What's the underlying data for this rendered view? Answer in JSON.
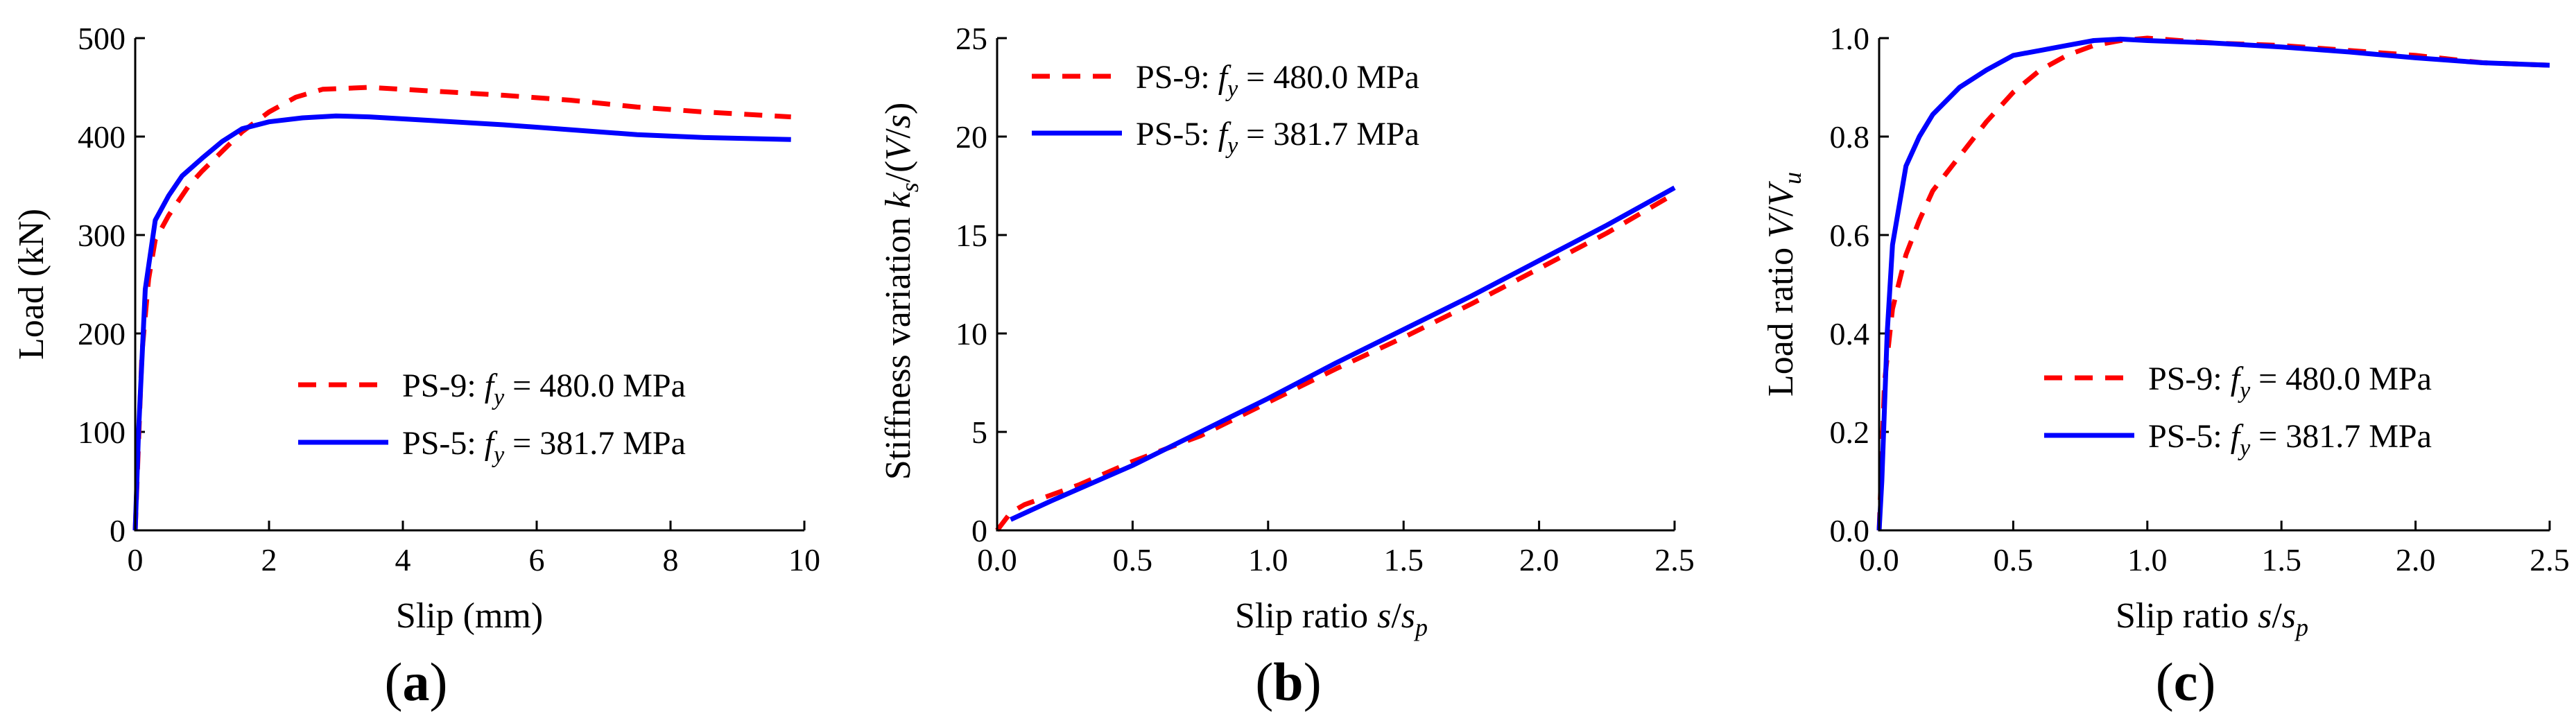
{
  "legend": {
    "ps9": {
      "name": "PS-9: ",
      "fy": "f",
      "sub": "y",
      "value": " = 480.0 MPa"
    },
    "ps5": {
      "name": "PS-5: ",
      "fy": "f",
      "sub": "y",
      "value": " = 381.7 MPa"
    }
  },
  "colors": {
    "ps9": "#ff0000",
    "ps5": "#0000ff"
  },
  "panels": {
    "a": {
      "open": "(",
      "letter": "a",
      "close": ")"
    },
    "b": {
      "open": "(",
      "letter": "b",
      "close": ")"
    },
    "c": {
      "open": "(",
      "letter": "c",
      "close": ")"
    }
  },
  "axes": {
    "a": {
      "xlabel": "Slip (mm)",
      "ylabel": "Load (kN)"
    },
    "b": {
      "xlabel_main": "Slip ratio ",
      "xlabel_s": "s",
      "xlabel_slash": "/",
      "xlabel_s2": "s",
      "xlabel_sub": "p",
      "ylabel_main": "Stiffness variation ",
      "ylabel_k": "k",
      "ylabel_sub": "s",
      "ylabel_open": "/(",
      "ylabel_V": "V",
      "ylabel_slash": "/",
      "ylabel_s": "s",
      "ylabel_close": ")"
    },
    "c": {
      "xlabel_main": "Slip ratio ",
      "xlabel_s": "s",
      "xlabel_slash": "/",
      "xlabel_s2": "s",
      "xlabel_sub": "p",
      "ylabel_main": "Load ratio ",
      "ylabel_V": "V",
      "ylabel_slash": "/",
      "ylabel_V2": "V",
      "ylabel_sub": "u"
    }
  },
  "chart_data": [
    {
      "id": "a",
      "type": "line",
      "title": "",
      "xlabel": "Slip (mm)",
      "ylabel": "Load (kN)",
      "xlim": [
        0,
        10
      ],
      "ylim": [
        0,
        500
      ],
      "xticks": [
        0,
        2,
        4,
        6,
        8,
        10
      ],
      "yticks": [
        0,
        100,
        200,
        300,
        400,
        500
      ],
      "xtick_labels": [
        "0",
        "2",
        "4",
        "6",
        "8",
        "10"
      ],
      "ytick_labels": [
        "0",
        "100",
        "200",
        "300",
        "400",
        "500"
      ],
      "legend_position": "lower-right",
      "series": [
        {
          "name": "PS-9: fy = 480.0 MPa",
          "color": "#ff0000",
          "dash": true,
          "x": [
            0,
            0.1,
            0.2,
            0.3,
            0.5,
            0.8,
            1.0,
            1.3,
            1.6,
            2.0,
            2.4,
            2.8,
            3.5,
            4.5,
            5.5,
            6.5,
            7.5,
            8.5,
            9.8
          ],
          "y": [
            0,
            180,
            255,
            295,
            320,
            350,
            365,
            385,
            405,
            425,
            440,
            448,
            450,
            446,
            442,
            437,
            430,
            425,
            420
          ]
        },
        {
          "name": "PS-5: fy = 381.7 MPa",
          "color": "#0000ff",
          "dash": false,
          "x": [
            0,
            0.05,
            0.15,
            0.3,
            0.5,
            0.7,
            1.0,
            1.3,
            1.6,
            2.0,
            2.5,
            3.0,
            3.5,
            4.5,
            5.5,
            6.5,
            7.5,
            8.5,
            9.8
          ],
          "y": [
            0,
            100,
            245,
            315,
            340,
            360,
            378,
            395,
            408,
            415,
            419,
            421,
            420,
            416,
            412,
            407,
            402,
            399,
            397
          ]
        }
      ]
    },
    {
      "id": "b",
      "type": "line",
      "title": "",
      "xlabel": "Slip ratio s/sp",
      "ylabel": "Stiffness variation ks/(V/s)",
      "xlim": [
        0,
        2.5
      ],
      "ylim": [
        0,
        25
      ],
      "xticks": [
        0,
        0.5,
        1.0,
        1.5,
        2.0,
        2.5
      ],
      "yticks": [
        0,
        5,
        10,
        15,
        20,
        25
      ],
      "xtick_labels": [
        "0.0",
        "0.5",
        "1.0",
        "1.5",
        "2.0",
        "2.5"
      ],
      "ytick_labels": [
        "0",
        "5",
        "10",
        "15",
        "20",
        "25"
      ],
      "legend_position": "top-left",
      "series": [
        {
          "name": "PS-9: fy = 480.0 MPa",
          "color": "#ff0000",
          "dash": true,
          "x": [
            0.0,
            0.05,
            0.1,
            0.3,
            0.5,
            0.75,
            1.0,
            1.25,
            1.5,
            1.75,
            2.0,
            2.25,
            2.5
          ],
          "y": [
            0.0,
            0.9,
            1.3,
            2.3,
            3.5,
            4.8,
            6.5,
            8.2,
            9.8,
            11.5,
            13.3,
            15.1,
            17.1
          ]
        },
        {
          "name": "PS-5: fy = 381.7 MPa",
          "color": "#0000ff",
          "dash": false,
          "x": [
            0.05,
            0.2,
            0.5,
            0.75,
            1.0,
            1.25,
            1.5,
            1.75,
            2.0,
            2.25,
            2.5
          ],
          "y": [
            0.55,
            1.5,
            3.3,
            5.0,
            6.7,
            8.5,
            10.2,
            11.9,
            13.7,
            15.5,
            17.4
          ]
        }
      ]
    },
    {
      "id": "c",
      "type": "line",
      "title": "",
      "xlabel": "Slip ratio s/sp",
      "ylabel": "Load ratio V/Vu",
      "xlim": [
        0,
        2.5
      ],
      "ylim": [
        0,
        1.0
      ],
      "xticks": [
        0,
        0.5,
        1.0,
        1.5,
        2.0,
        2.5
      ],
      "yticks": [
        0,
        0.2,
        0.4,
        0.6,
        0.8,
        1.0
      ],
      "xtick_labels": [
        "0.0",
        "0.5",
        "1.0",
        "1.5",
        "2.0",
        "2.5"
      ],
      "ytick_labels": [
        "0.0",
        "0.2",
        "0.4",
        "0.6",
        "0.8",
        "1.0"
      ],
      "legend_position": "lower-right",
      "series": [
        {
          "name": "PS-9: fy = 480.0 MPa",
          "color": "#ff0000",
          "dash": true,
          "x": [
            0,
            0.02,
            0.05,
            0.1,
            0.15,
            0.2,
            0.3,
            0.4,
            0.5,
            0.6,
            0.7,
            0.8,
            0.9,
            1.0,
            1.25,
            1.5,
            1.75,
            2.0,
            2.25,
            2.5
          ],
          "y": [
            0,
            0.3,
            0.45,
            0.56,
            0.63,
            0.69,
            0.76,
            0.83,
            0.89,
            0.935,
            0.965,
            0.985,
            0.995,
            1.0,
            0.99,
            0.985,
            0.975,
            0.965,
            0.95,
            0.945
          ]
        },
        {
          "name": "PS-5: fy = 381.7 MPa",
          "color": "#0000ff",
          "dash": false,
          "x": [
            0,
            0.01,
            0.03,
            0.05,
            0.1,
            0.15,
            0.2,
            0.3,
            0.4,
            0.5,
            0.6,
            0.7,
            0.8,
            0.9,
            1.0,
            1.25,
            1.5,
            1.75,
            2.0,
            2.25,
            2.5
          ],
          "y": [
            0,
            0.1,
            0.4,
            0.58,
            0.74,
            0.8,
            0.845,
            0.9,
            0.935,
            0.965,
            0.975,
            0.985,
            0.995,
            0.998,
            0.995,
            0.99,
            0.982,
            0.972,
            0.96,
            0.95,
            0.945
          ]
        }
      ]
    }
  ]
}
